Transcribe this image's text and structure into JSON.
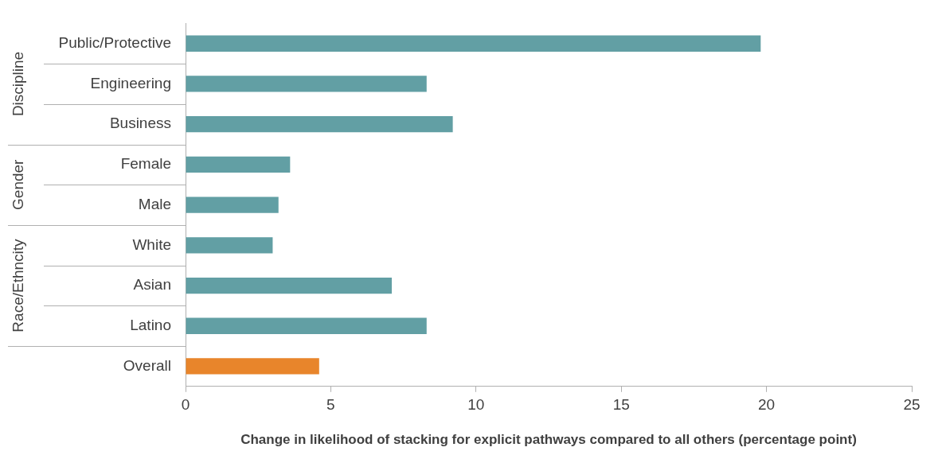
{
  "chart_data": {
    "type": "bar",
    "orientation": "horizontal",
    "categories": [
      "Public/Protective",
      "Engineering",
      "Business",
      "Female",
      "Male",
      "White",
      "Asian",
      "Latino",
      "Overall"
    ],
    "values": [
      19.8,
      8.3,
      9.2,
      3.6,
      3.2,
      3.0,
      7.1,
      8.3,
      4.6
    ],
    "colors": [
      "#629fa4",
      "#629fa4",
      "#629fa4",
      "#629fa4",
      "#629fa4",
      "#629fa4",
      "#629fa4",
      "#629fa4",
      "#e8852b"
    ],
    "xlabel": "Change in likelihood of stacking for explicit pathways compared to all others (percentage point)",
    "xlim": [
      0,
      25
    ],
    "xticks": [
      0,
      5,
      10,
      15,
      20,
      25
    ],
    "annotations": [
      "Discipline",
      "Gender",
      "Race/Ethncity"
    ],
    "grid": false,
    "legend": false
  }
}
